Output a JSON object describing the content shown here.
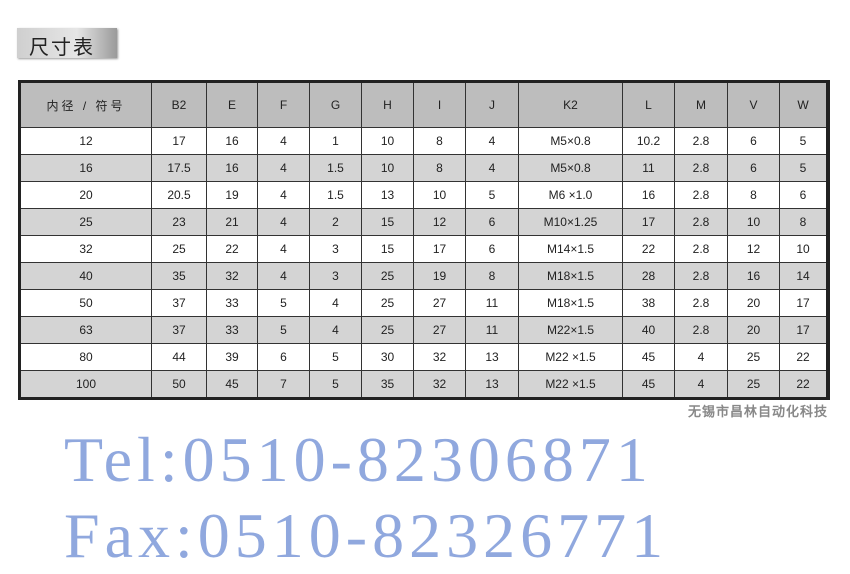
{
  "title": "尺寸表",
  "table": {
    "headers": [
      "内径 / 符号",
      "B2",
      "E",
      "F",
      "G",
      "H",
      "I",
      "J",
      "K2",
      "L",
      "M",
      "V",
      "W"
    ],
    "rows": [
      [
        "12",
        "17",
        "16",
        "4",
        "1",
        "10",
        "8",
        "4",
        "M5×0.8",
        "10.2",
        "2.8",
        "6",
        "5"
      ],
      [
        "16",
        "17.5",
        "16",
        "4",
        "1.5",
        "10",
        "8",
        "4",
        "M5×0.8",
        "11",
        "2.8",
        "6",
        "5"
      ],
      [
        "20",
        "20.5",
        "19",
        "4",
        "1.5",
        "13",
        "10",
        "5",
        "M6 ×1.0",
        "16",
        "2.8",
        "8",
        "6"
      ],
      [
        "25",
        "23",
        "21",
        "4",
        "2",
        "15",
        "12",
        "6",
        "M10×1.25",
        "17",
        "2.8",
        "10",
        "8"
      ],
      [
        "32",
        "25",
        "22",
        "4",
        "3",
        "15",
        "17",
        "6",
        "M14×1.5",
        "22",
        "2.8",
        "12",
        "10"
      ],
      [
        "40",
        "35",
        "32",
        "4",
        "3",
        "25",
        "19",
        "8",
        "M18×1.5",
        "28",
        "2.8",
        "16",
        "14"
      ],
      [
        "50",
        "37",
        "33",
        "5",
        "4",
        "25",
        "27",
        "11",
        "M18×1.5",
        "38",
        "2.8",
        "20",
        "17"
      ],
      [
        "63",
        "37",
        "33",
        "5",
        "4",
        "25",
        "27",
        "11",
        "M22×1.5",
        "40",
        "2.8",
        "20",
        "17"
      ],
      [
        "80",
        "44",
        "39",
        "6",
        "5",
        "30",
        "32",
        "13",
        "M22 ×1.5",
        "45",
        "4",
        "25",
        "22"
      ],
      [
        "100",
        "50",
        "45",
        "7",
        "5",
        "35",
        "32",
        "13",
        "M22 ×1.5",
        "45",
        "4",
        "25",
        "22"
      ]
    ]
  },
  "watermark": {
    "tel": "Tel:0510-82306871",
    "fax": "Fax:0510-82326771",
    "color": "#466ec8"
  },
  "footer": "无锡市昌林自动化科技"
}
